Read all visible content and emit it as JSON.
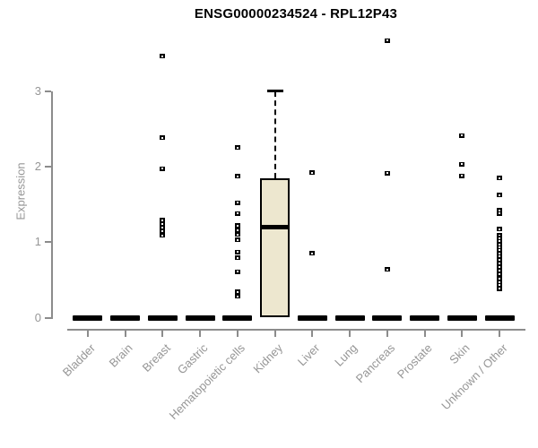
{
  "chart_data": {
    "type": "boxplot",
    "title": "ENSG00000234524 - RPL12P43",
    "ylabel": "Expression",
    "yticks": [
      0,
      1,
      2,
      3
    ],
    "ylim": [
      0,
      3
    ],
    "grid": false,
    "legend": "none",
    "categories": [
      "Bladder",
      "Brain",
      "Breast",
      "Gastric",
      "Hematopoietic cells",
      "Kidney",
      "Liver",
      "Lung",
      "Pancreas",
      "Prostate",
      "Skin",
      "Unknown / Other"
    ],
    "boxes": [
      {
        "category": "Bladder",
        "median": 0,
        "q1": 0,
        "q3": 0,
        "whisker_low": 0,
        "whisker_high": 0,
        "outliers": []
      },
      {
        "category": "Brain",
        "median": 0,
        "q1": 0,
        "q3": 0,
        "whisker_low": 0,
        "whisker_high": 0,
        "outliers": []
      },
      {
        "category": "Breast",
        "median": 0,
        "q1": 0,
        "q3": 0,
        "whisker_low": 0,
        "whisker_high": 0,
        "outliers": [
          3.46,
          2.38,
          1.97,
          1.29,
          1.24,
          1.19,
          1.14,
          1.09
        ]
      },
      {
        "category": "Gastric",
        "median": 0,
        "q1": 0,
        "q3": 0,
        "whisker_low": 0,
        "whisker_high": 0,
        "outliers": []
      },
      {
        "category": "Hematopoietic cells",
        "median": 0,
        "q1": 0,
        "q3": 0,
        "whisker_low": 0,
        "whisker_high": 0,
        "outliers": [
          2.25,
          1.87,
          1.52,
          1.38,
          1.22,
          1.16,
          1.1,
          1.03,
          0.87,
          0.79,
          0.61,
          0.34,
          0.28
        ]
      },
      {
        "category": "Kidney",
        "median": 1.2,
        "q1": 0,
        "q3": 1.85,
        "whisker_low": 0,
        "whisker_high": 3.0,
        "outliers": []
      },
      {
        "category": "Liver",
        "median": 0,
        "q1": 0,
        "q3": 0,
        "whisker_low": 0,
        "whisker_high": 0,
        "outliers": [
          1.92,
          0.85
        ]
      },
      {
        "category": "Lung",
        "median": 0,
        "q1": 0,
        "q3": 0,
        "whisker_low": 0,
        "whisker_high": 0,
        "outliers": []
      },
      {
        "category": "Pancreas",
        "median": 0,
        "q1": 0,
        "q3": 0,
        "whisker_low": 0,
        "whisker_high": 0,
        "outliers": [
          3.67,
          1.91,
          0.64
        ]
      },
      {
        "category": "Prostate",
        "median": 0,
        "q1": 0,
        "q3": 0,
        "whisker_low": 0,
        "whisker_high": 0,
        "outliers": []
      },
      {
        "category": "Skin",
        "median": 0,
        "q1": 0,
        "q3": 0,
        "whisker_low": 0,
        "whisker_high": 0,
        "outliers": [
          2.41,
          2.03,
          1.88
        ]
      },
      {
        "category": "Unknown / Other",
        "median": 0,
        "q1": 0,
        "q3": 0,
        "whisker_low": 0,
        "whisker_high": 0,
        "outliers": [
          1.85,
          1.62,
          1.42,
          1.38,
          1.17,
          1.09,
          1.05,
          1.01,
          0.97,
          0.93,
          0.89,
          0.85,
          0.81,
          0.77,
          0.72,
          0.67,
          0.62,
          0.57,
          0.52,
          0.47,
          0.43,
          0.38
        ]
      }
    ],
    "colors": {
      "box_fill": "#EDE7CF",
      "box_border": "#000000",
      "axis": "#8C8C8C",
      "label_text": "#969696",
      "title_text": "#000000",
      "point": "#000000",
      "background": "#FFFFFF"
    }
  }
}
